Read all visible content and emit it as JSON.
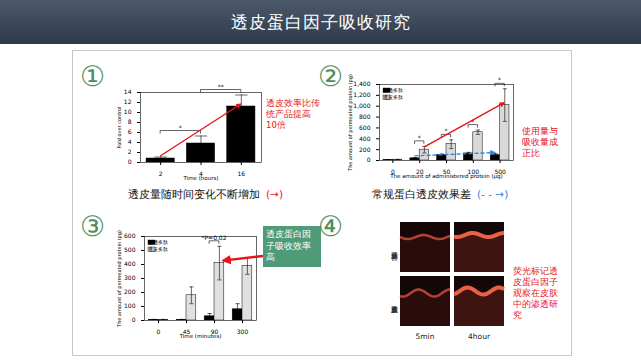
{
  "title": "透皮蛋白因子吸收研究",
  "chart_data": [
    {
      "type": "bar",
      "number": "①",
      "x_label": "Time (hours)",
      "y_label": "Fold over control",
      "categories": [
        2,
        4,
        16
      ],
      "values": [
        0.8,
        3.8,
        11.2
      ],
      "errors": [
        0.3,
        1.5,
        2.3
      ],
      "color": "#000000",
      "ylim": [
        0,
        14
      ],
      "yticks": [
        0,
        2,
        4,
        6,
        8,
        10,
        12,
        14
      ],
      "significance": [
        {
          "from": 2,
          "to": 4,
          "label": "*"
        },
        {
          "from": 4,
          "to": 16,
          "label": "**"
        }
      ],
      "annotation": "透皮效率比传统产品提高10倍",
      "caption": "透皮量随时间变化不断增加",
      "caption_key": "(→)"
    },
    {
      "type": "bar",
      "number": "②",
      "x_label": "The amount of administered protein (μg)",
      "y_label": "The amount of permeated protein (pg)",
      "categories": [
        0,
        20,
        50,
        100,
        500
      ],
      "series": [
        {
          "name": "普通多肽",
          "color": "#000000",
          "values": [
            10,
            40,
            100,
            130,
            100
          ],
          "errors": [
            5,
            15,
            20,
            20,
            30
          ]
        },
        {
          "name": "透皮多肽",
          "color": "#d9d9d9",
          "values": [
            15,
            200,
            300,
            520,
            1020
          ],
          "errors": [
            5,
            60,
            80,
            40,
            300
          ]
        }
      ],
      "ylim": [
        0,
        1400
      ],
      "yticks": [
        0,
        200,
        400,
        600,
        800,
        1000,
        1200,
        1400
      ],
      "legend": "top-left",
      "significance": [
        {
          "from": 20,
          "to": 20,
          "label": "*"
        },
        {
          "from": 50,
          "to": 50,
          "label": "*"
        },
        {
          "from": 100,
          "to": 100,
          "label": "*"
        },
        {
          "from": 500,
          "to": 500,
          "label": "*"
        }
      ],
      "annotation": "使用量与吸收量成正比",
      "caption": "常规蛋白透皮效果差",
      "caption_key": "(- - →)"
    },
    {
      "type": "bar",
      "number": "③",
      "x_label": "Time (minutes)",
      "y_label": "The amount of permeated protein (pg)",
      "categories": [
        0,
        45,
        90,
        300
      ],
      "series": [
        {
          "name": "普通多肽",
          "color": "#000000",
          "values": [
            5,
            5,
            30,
            80
          ],
          "errors": [
            3,
            3,
            20,
            40
          ]
        },
        {
          "name": "透皮多肽",
          "color": "#e0e0e0",
          "values": [
            5,
            180,
            410,
            390
          ],
          "errors": [
            3,
            60,
            120,
            60
          ]
        }
      ],
      "ylim": [
        0,
        600
      ],
      "yticks": [
        0,
        100,
        200,
        300,
        400,
        500,
        600
      ],
      "legend": "top-left",
      "significance": [
        {
          "from": 90,
          "to": 90,
          "label": "*P=0.02"
        }
      ],
      "annotation": "透皮蛋白因子吸收效率高"
    }
  ],
  "image_panel": {
    "number": "④",
    "rows": [
      "普通多肽",
      "透皮多肽"
    ],
    "columns": [
      "5min",
      "4hour"
    ],
    "annotation": "荧光标记透皮蛋白因子观察在皮肤中的渗透研究"
  }
}
